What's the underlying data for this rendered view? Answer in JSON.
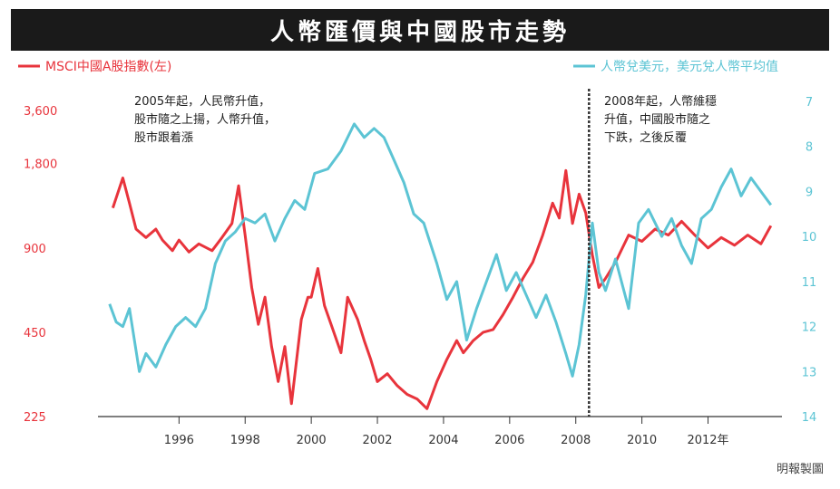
{
  "title": "人幣匯價與中國股市走勢",
  "colors": {
    "left_series": "#e8343c",
    "right_series": "#5cc4d4",
    "title_bg": "#1a1a1a",
    "axis": "#333333",
    "divider": "#333333"
  },
  "source": "明報製圖",
  "chart_data": {
    "type": "line",
    "x_range": [
      1993.0,
      2014.4
    ],
    "x_ticks": [
      1996,
      1998,
      2000,
      2002,
      2004,
      2006,
      2008,
      2010,
      2012
    ],
    "x_tick_labels": [
      "1996",
      "1998",
      "2000",
      "2002",
      "2004",
      "2006",
      "2008",
      "2010",
      "2012年"
    ],
    "left_axis": {
      "scale": "log",
      "range": [
        225,
        3000
      ],
      "ticks": [
        225,
        450,
        900,
        1800,
        3600
      ],
      "tick_labels": [
        "225",
        "450",
        "900",
        "1,800",
        "3,600"
      ]
    },
    "right_axis": {
      "inverted": true,
      "range": [
        7,
        14
      ],
      "ticks": [
        7,
        8,
        9,
        10,
        11,
        12,
        13,
        14
      ],
      "tick_labels": [
        "7",
        "8",
        "9",
        "10",
        "11",
        "12",
        "13",
        "14"
      ]
    },
    "grid": false,
    "legend_position": "top",
    "series": [
      {
        "name": "MSCI中國A股指數(左)",
        "axis": "left",
        "points": [
          [
            1994.0,
            1250
          ],
          [
            1994.3,
            1600
          ],
          [
            1994.5,
            1300
          ],
          [
            1994.7,
            1050
          ],
          [
            1995.0,
            980
          ],
          [
            1995.3,
            1050
          ],
          [
            1995.5,
            960
          ],
          [
            1995.8,
            880
          ],
          [
            1996.0,
            960
          ],
          [
            1996.3,
            870
          ],
          [
            1996.6,
            930
          ],
          [
            1997.0,
            880
          ],
          [
            1997.3,
            980
          ],
          [
            1997.6,
            1100
          ],
          [
            1997.8,
            1500
          ],
          [
            1998.0,
            1000
          ],
          [
            1998.2,
            650
          ],
          [
            1998.4,
            480
          ],
          [
            1998.6,
            600
          ],
          [
            1998.8,
            400
          ],
          [
            1999.0,
            300
          ],
          [
            1999.2,
            400
          ],
          [
            1999.4,
            250
          ],
          [
            1999.7,
            500
          ],
          [
            1999.9,
            600
          ],
          [
            2000.0,
            600
          ],
          [
            2000.2,
            760
          ],
          [
            2000.4,
            560
          ],
          [
            2000.6,
            480
          ],
          [
            2000.9,
            380
          ],
          [
            2001.1,
            600
          ],
          [
            2001.4,
            500
          ],
          [
            2001.6,
            420
          ],
          [
            2001.8,
            360
          ],
          [
            2002.0,
            300
          ],
          [
            2002.3,
            320
          ],
          [
            2002.6,
            290
          ],
          [
            2002.9,
            270
          ],
          [
            2003.2,
            260
          ],
          [
            2003.5,
            240
          ],
          [
            2003.8,
            300
          ],
          [
            2004.1,
            360
          ],
          [
            2004.4,
            420
          ],
          [
            2004.6,
            380
          ],
          [
            2004.9,
            420
          ],
          [
            2005.2,
            450
          ],
          [
            2005.5,
            460
          ],
          [
            2005.8,
            520
          ],
          [
            2006.1,
            600
          ],
          [
            2006.4,
            700
          ],
          [
            2006.7,
            800
          ],
          [
            2007.0,
            1000
          ],
          [
            2007.3,
            1300
          ],
          [
            2007.5,
            1150
          ],
          [
            2007.7,
            1700
          ],
          [
            2007.9,
            1100
          ],
          [
            2008.1,
            1400
          ],
          [
            2008.3,
            1200
          ],
          [
            2008.5,
            850
          ],
          [
            2008.7,
            650
          ],
          [
            2008.9,
            700
          ],
          [
            2009.2,
            800
          ],
          [
            2009.6,
            1000
          ],
          [
            2010.0,
            950
          ],
          [
            2010.4,
            1050
          ],
          [
            2010.8,
            1000
          ],
          [
            2011.2,
            1120
          ],
          [
            2011.6,
            1000
          ],
          [
            2012.0,
            900
          ],
          [
            2012.4,
            980
          ],
          [
            2012.8,
            920
          ],
          [
            2013.2,
            1000
          ],
          [
            2013.6,
            930
          ],
          [
            2013.9,
            1080
          ]
        ]
      },
      {
        "name": "人幣兌美元，美元兌人幣平均值",
        "axis": "right",
        "points": [
          [
            1993.9,
            11.5
          ],
          [
            1994.1,
            11.9
          ],
          [
            1994.3,
            12.0
          ],
          [
            1994.5,
            11.6
          ],
          [
            1994.8,
            13.0
          ],
          [
            1995.0,
            12.6
          ],
          [
            1995.3,
            12.9
          ],
          [
            1995.6,
            12.4
          ],
          [
            1995.9,
            12.0
          ],
          [
            1996.2,
            11.8
          ],
          [
            1996.5,
            12.0
          ],
          [
            1996.8,
            11.6
          ],
          [
            1997.1,
            10.6
          ],
          [
            1997.4,
            10.1
          ],
          [
            1997.7,
            9.9
          ],
          [
            1998.0,
            9.6
          ],
          [
            1998.3,
            9.7
          ],
          [
            1998.6,
            9.5
          ],
          [
            1998.9,
            10.1
          ],
          [
            1999.2,
            9.6
          ],
          [
            1999.5,
            9.2
          ],
          [
            1999.8,
            9.4
          ],
          [
            2000.1,
            8.6
          ],
          [
            2000.5,
            8.5
          ],
          [
            2000.9,
            8.1
          ],
          [
            2001.3,
            7.5
          ],
          [
            2001.6,
            7.8
          ],
          [
            2001.9,
            7.6
          ],
          [
            2002.2,
            7.8
          ],
          [
            2002.5,
            8.3
          ],
          [
            2002.8,
            8.8
          ],
          [
            2003.1,
            9.5
          ],
          [
            2003.4,
            9.7
          ],
          [
            2003.8,
            10.6
          ],
          [
            2004.1,
            11.4
          ],
          [
            2004.4,
            11.0
          ],
          [
            2004.7,
            12.3
          ],
          [
            2005.0,
            11.6
          ],
          [
            2005.3,
            11.0
          ],
          [
            2005.6,
            10.4
          ],
          [
            2005.9,
            11.2
          ],
          [
            2006.2,
            10.8
          ],
          [
            2006.5,
            11.3
          ],
          [
            2006.8,
            11.8
          ],
          [
            2007.1,
            11.3
          ],
          [
            2007.4,
            11.9
          ],
          [
            2007.7,
            12.6
          ],
          [
            2007.9,
            13.1
          ],
          [
            2008.1,
            12.4
          ],
          [
            2008.3,
            11.3
          ],
          [
            2008.5,
            9.7
          ],
          [
            2008.7,
            10.8
          ],
          [
            2008.9,
            11.2
          ],
          [
            2009.2,
            10.5
          ],
          [
            2009.6,
            11.6
          ],
          [
            2009.9,
            9.7
          ],
          [
            2010.2,
            9.4
          ],
          [
            2010.6,
            10.0
          ],
          [
            2010.9,
            9.6
          ],
          [
            2011.2,
            10.2
          ],
          [
            2011.5,
            10.6
          ],
          [
            2011.8,
            9.6
          ],
          [
            2012.1,
            9.4
          ],
          [
            2012.4,
            8.9
          ],
          [
            2012.7,
            8.5
          ],
          [
            2013.0,
            9.1
          ],
          [
            2013.3,
            8.7
          ],
          [
            2013.6,
            9.0
          ],
          [
            2013.9,
            9.3
          ]
        ]
      }
    ],
    "divider_x": 2008.4,
    "annotations": [
      {
        "lines": [
          "2005年起，人民幣升值，",
          "股市隨之上揚，人幣升值，",
          "股市跟着漲"
        ]
      },
      {
        "lines": [
          "2008年起，人幣維穩",
          "升值，中國股市隨之",
          "下跌，之後反覆"
        ]
      }
    ]
  }
}
